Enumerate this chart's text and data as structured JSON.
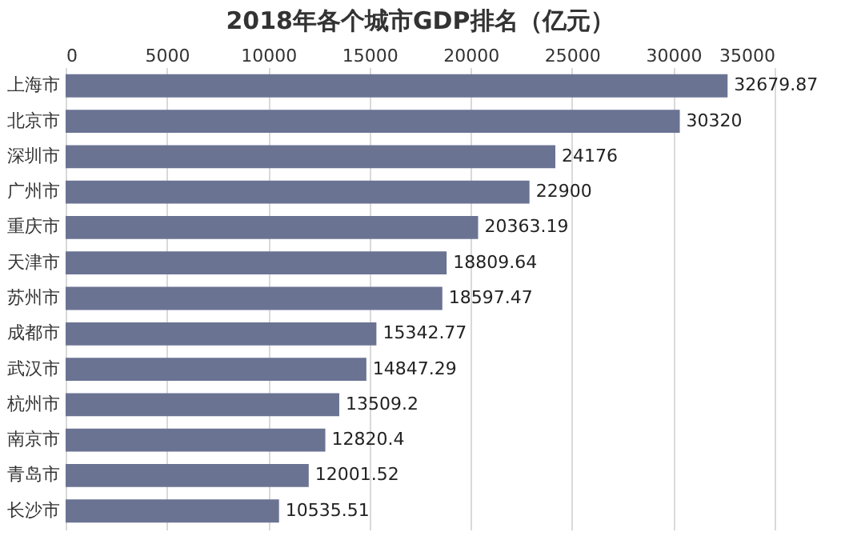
{
  "chart_data": {
    "type": "bar",
    "title": "2018年各个城市GDP排名（亿元）",
    "orientation": "horizontal",
    "categories": [
      "上海市",
      "北京市",
      "深圳市",
      "广州市",
      "重庆市",
      "天津市",
      "苏州市",
      "成都市",
      "武汉市",
      "杭州市",
      "南京市",
      "青岛市",
      "长沙市"
    ],
    "values": [
      32679.87,
      30320,
      24176,
      22900,
      20363.19,
      18809.64,
      18597.47,
      15342.77,
      14847.29,
      13509.2,
      12820.4,
      12001.52,
      10535.51
    ],
    "color": "#6b7393",
    "xlim": [
      0,
      35000
    ],
    "xticks": [
      0,
      5000,
      10000,
      15000,
      20000,
      25000,
      30000,
      35000
    ],
    "grid": "x",
    "data_labels": true
  }
}
